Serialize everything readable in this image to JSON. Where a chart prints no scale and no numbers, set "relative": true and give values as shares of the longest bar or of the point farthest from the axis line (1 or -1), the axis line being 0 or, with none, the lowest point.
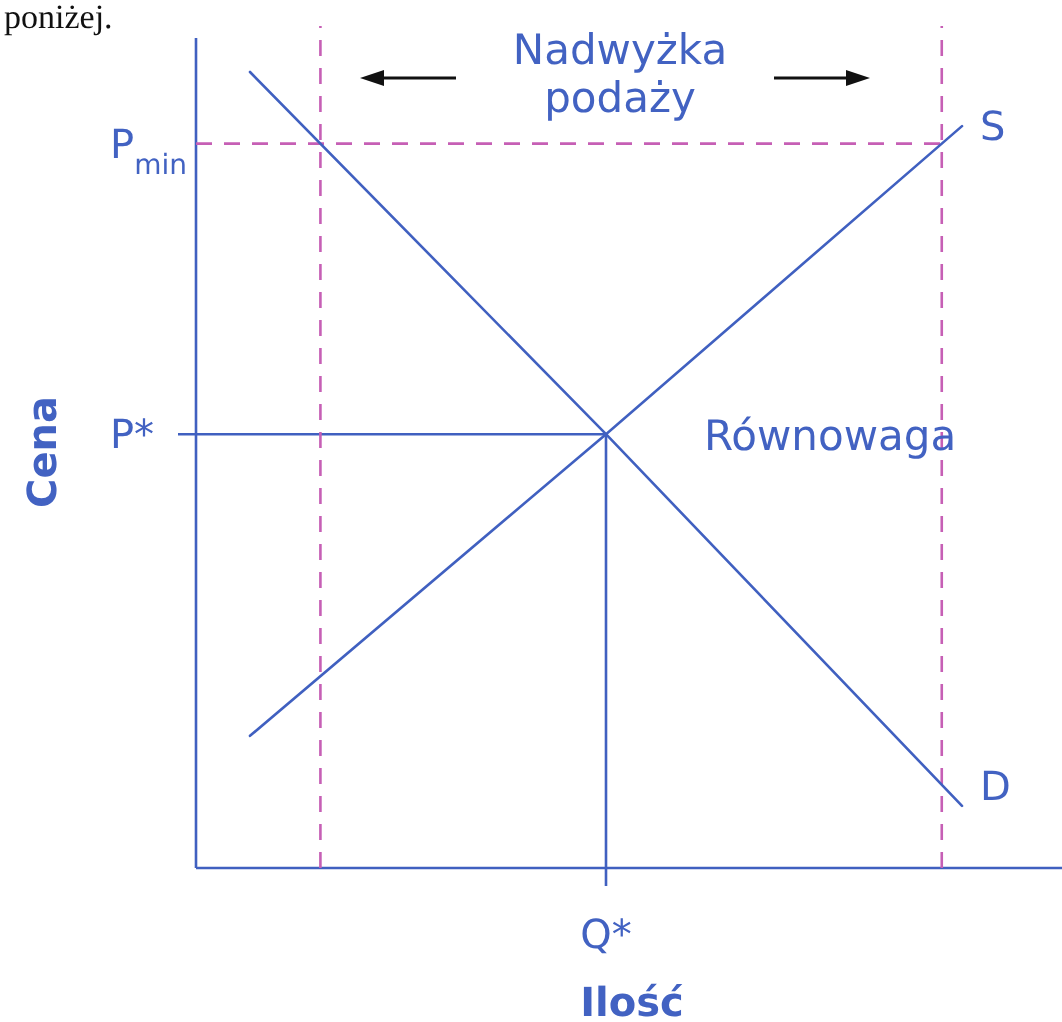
{
  "chart_data": {
    "type": "line",
    "xlabel": "Ilość",
    "ylabel": "Cena",
    "relative": true,
    "categories": [
      null,
      null,
      null
    ],
    "series": [
      {
        "name": "S",
        "color": "#4060c0",
        "values": [
          0.166,
          0.545,
          0.932
        ]
      },
      {
        "name": "D",
        "color": "#4060c0",
        "values": [
          1,
          0.545,
          0.078
        ]
      }
    ],
    "ref_lines": [
      {
        "axis": "y",
        "value": 0.545,
        "label": "P*",
        "color": "#4060c0"
      },
      {
        "axis": "y",
        "value": 0.91,
        "label": "P$_{min}$",
        "color": "#c65fb5",
        "line_style": "dashed"
      }
    ],
    "annotations": [
      "poniżej.",
      "Nadwyżka podaży",
      "Równowaga",
      "Q*"
    ]
  }
}
